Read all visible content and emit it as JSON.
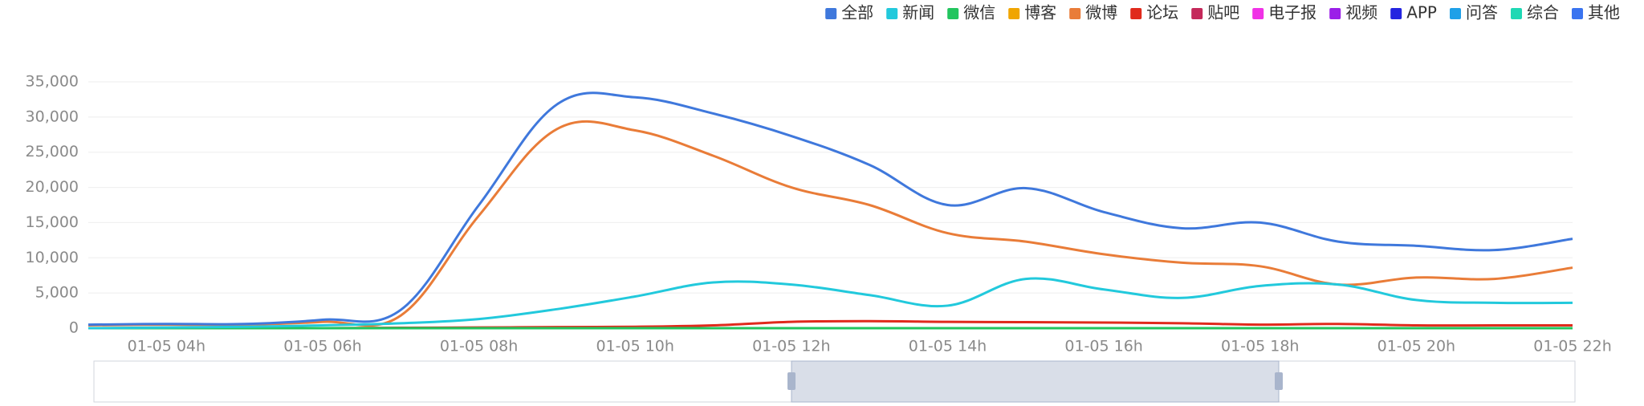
{
  "chart_data": {
    "type": "line",
    "categories": [
      null,
      "01-05 04h",
      null,
      "01-05 06h",
      null,
      "01-05 08h",
      null,
      "01-05 10h",
      null,
      "01-05 12h",
      null,
      "01-05 14h",
      null,
      "01-05 16h",
      null,
      "01-05 18h",
      null,
      "01-05 20h",
      null,
      "01-05 22h"
    ],
    "series": [
      {
        "name": "全部",
        "color": "#3f78dc",
        "values": [
          500,
          600,
          600,
          1200,
          2600,
          17500,
          31800,
          32800,
          30500,
          27300,
          23200,
          17500,
          19900,
          16500,
          14200,
          15000,
          12300,
          11700,
          11100,
          12700
        ]
      },
      {
        "name": "新闻",
        "color": "#22c9dc",
        "values": [
          0,
          100,
          200,
          400,
          700,
          1300,
          2700,
          4500,
          6500,
          6200,
          4700,
          3200,
          7000,
          5500,
          4300,
          6000,
          6200,
          4000,
          3600,
          3600
        ]
      },
      {
        "name": "微信",
        "color": "#22c55e",
        "values": [
          0,
          0,
          0,
          0,
          0,
          0,
          0,
          0,
          0,
          0,
          0,
          0,
          0,
          0,
          0,
          0,
          0,
          0,
          0,
          0
        ]
      },
      {
        "name": "博客",
        "color": "#f0a500",
        "values": [
          0,
          0,
          0,
          0,
          0,
          0,
          0,
          0,
          0,
          0,
          0,
          0,
          0,
          0,
          0,
          0,
          0,
          0,
          0,
          0
        ]
      },
      {
        "name": "微博",
        "color": "#e97c38",
        "values": [
          400,
          500,
          500,
          900,
          1800,
          16000,
          28300,
          28100,
          24500,
          20000,
          17500,
          13500,
          12300,
          10500,
          9300,
          8800,
          6200,
          7200,
          7000,
          8600
        ]
      },
      {
        "name": "论坛",
        "color": "#e02a1c",
        "values": [
          0,
          0,
          0,
          0,
          50,
          100,
          150,
          200,
          400,
          900,
          1000,
          900,
          850,
          800,
          700,
          500,
          600,
          400,
          400,
          400
        ]
      },
      {
        "name": "贴吧",
        "color": "#c4285a",
        "values": [
          0,
          0,
          0,
          0,
          0,
          0,
          0,
          0,
          0,
          0,
          0,
          0,
          0,
          0,
          0,
          0,
          0,
          0,
          0,
          0
        ]
      },
      {
        "name": "电子报",
        "color": "#f032e6",
        "values": [
          0,
          0,
          0,
          0,
          0,
          0,
          0,
          0,
          0,
          0,
          0,
          0,
          0,
          0,
          0,
          0,
          0,
          0,
          0,
          0
        ]
      },
      {
        "name": "视频",
        "color": "#9b1fe8",
        "values": [
          0,
          0,
          0,
          0,
          0,
          0,
          0,
          0,
          0,
          0,
          0,
          0,
          0,
          0,
          0,
          0,
          0,
          0,
          0,
          0
        ]
      },
      {
        "name": "APP",
        "color": "#2424e0",
        "values": [
          0,
          0,
          0,
          0,
          0,
          0,
          0,
          0,
          0,
          0,
          0,
          0,
          0,
          0,
          0,
          0,
          0,
          0,
          0,
          0
        ]
      },
      {
        "name": "问答",
        "color": "#1ea0e8",
        "values": [
          0,
          0,
          0,
          0,
          0,
          0,
          0,
          0,
          0,
          0,
          0,
          0,
          0,
          0,
          0,
          0,
          0,
          0,
          0,
          0
        ]
      },
      {
        "name": "综合",
        "color": "#1ed8b4",
        "values": [
          0,
          0,
          0,
          0,
          0,
          0,
          0,
          0,
          0,
          0,
          0,
          0,
          0,
          0,
          0,
          0,
          0,
          0,
          0,
          0
        ]
      },
      {
        "name": "其他",
        "color": "#3a74f0",
        "values": [
          0,
          0,
          0,
          0,
          0,
          0,
          0,
          0,
          0,
          0,
          0,
          0,
          0,
          0,
          0,
          0,
          0,
          0,
          0,
          0
        ]
      }
    ],
    "ylim": [
      0,
      35000
    ],
    "yticks": [
      0,
      {
        "value": 5000,
        "label": "5,000"
      },
      {
        "value": 10000,
        "label": "10,000"
      },
      {
        "value": 15000,
        "label": "15,000"
      },
      {
        "value": 20000,
        "label": "20,000"
      },
      {
        "value": 25000,
        "label": "25,000"
      },
      {
        "value": 30000,
        "label": "30,000"
      },
      {
        "value": 35000,
        "label": "35,000"
      }
    ],
    "grid": true,
    "legend": "top-right"
  }
}
